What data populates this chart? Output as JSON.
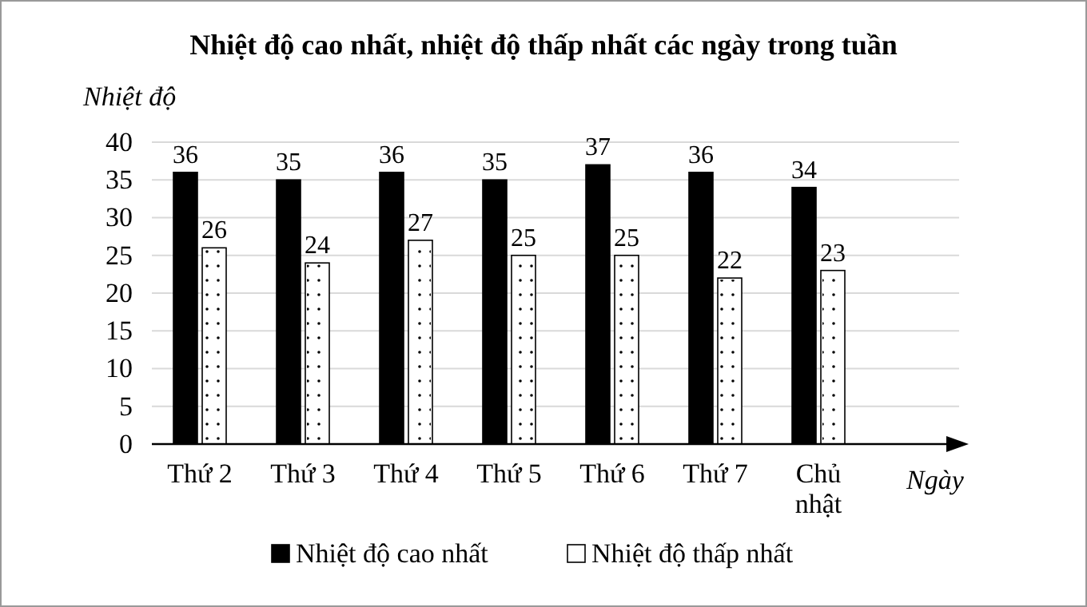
{
  "chart_data": {
    "type": "bar",
    "title": "Nhiệt độ cao nhất, nhiệt độ thấp nhất các ngày trong tuần",
    "ylabel": "Nhiệt độ",
    "xlabel": "Ngày",
    "categories": [
      "Thứ 2",
      "Thứ 3",
      "Thứ 4",
      "Thứ 5",
      "Thứ 6",
      "Thứ 7",
      "Chủ nhật"
    ],
    "series": [
      {
        "name": "Nhiệt độ cao nhất",
        "color": "#000000",
        "values": [
          36,
          35,
          36,
          35,
          37,
          36,
          34
        ]
      },
      {
        "name": "Nhiệt độ thấp nhất",
        "color": "#ffffff",
        "values": [
          26,
          24,
          27,
          25,
          25,
          22,
          23
        ]
      }
    ],
    "ylim": [
      0,
      40
    ],
    "yticks": [
      0,
      5,
      10,
      15,
      20,
      25,
      30,
      35,
      40
    ],
    "grid": "y",
    "legend": "bottom",
    "data_labels": true
  }
}
